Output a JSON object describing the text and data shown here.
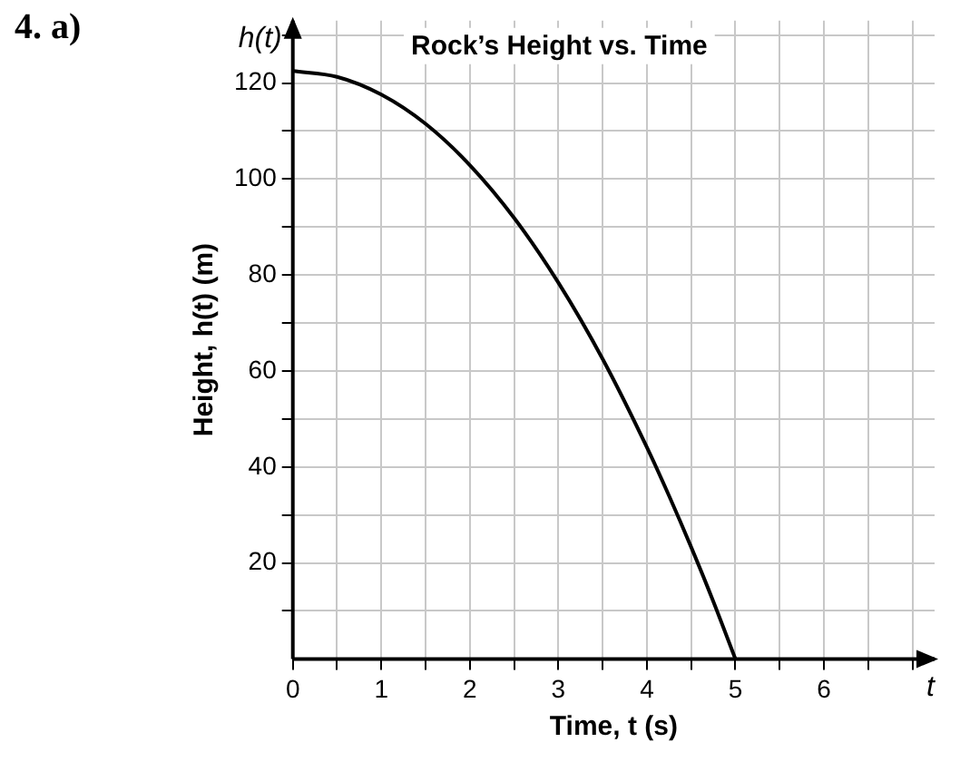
{
  "chart_data": {
    "type": "line",
    "title": "Rock’s Height vs. Time",
    "xlabel": "Time, t (s)",
    "ylabel": "Height, h(t) (m)",
    "annotations": [
      "4. a)",
      "h(t)",
      "t"
    ],
    "x": [
      0,
      0.5,
      1,
      1.5,
      2,
      2.5,
      3,
      3.5,
      4,
      4.25,
      4.5,
      4.75,
      5
    ],
    "series": [
      {
        "color": "#000000",
        "values": [
          122.5,
          121.3,
          117.6,
          111.5,
          102.9,
          91.9,
          78.4,
          62.5,
          44.1,
          34.0,
          23.3,
          12.0,
          0
        ]
      }
    ],
    "xlim": [
      0,
      7.25
    ],
    "ylim": [
      0,
      133
    ],
    "xticks": [
      0,
      {
        "value": 0.5,
        "label": null
      },
      1,
      {
        "value": 1.5,
        "label": null
      },
      2,
      {
        "value": 2.5,
        "label": null
      },
      3,
      {
        "value": 3.5,
        "label": null
      },
      4,
      {
        "value": 4.5,
        "label": null
      },
      5,
      {
        "value": 5.5,
        "label": null
      },
      6,
      {
        "value": 6.5,
        "label": null
      },
      {
        "value": 7,
        "label": null
      }
    ],
    "yticks": [
      {
        "value": 10,
        "label": null
      },
      20,
      {
        "value": 30,
        "label": null
      },
      40,
      {
        "value": 50,
        "label": null
      },
      60,
      {
        "value": 70,
        "label": null
      },
      80,
      {
        "value": 90,
        "label": null
      },
      100,
      {
        "value": 110,
        "label": null
      },
      120,
      {
        "value": 130,
        "label": null
      }
    ],
    "grid": true,
    "legend": false,
    "marker": "none",
    "line_style": "solid"
  }
}
